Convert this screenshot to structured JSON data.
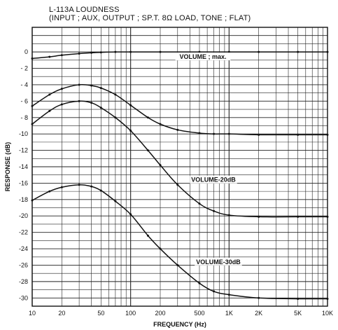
{
  "chart_data": {
    "type": "line",
    "title": "L-113A  LOUDNESS",
    "subtitle": "(INPUT ; AUX, OUTPUT ; SP.T. 8Ω LOAD, TONE ; FLAT)",
    "xlabel": "FREQUENCY (Hz)",
    "ylabel": "RESPONSE (dB)",
    "xscale": "log",
    "xlim": [
      10,
      10000
    ],
    "ylim": [
      -31,
      3
    ],
    "x_ticks": [
      10,
      20,
      50,
      100,
      200,
      500,
      1000,
      2000,
      5000,
      10000
    ],
    "x_tick_labels": [
      "10",
      "20",
      "50",
      "100",
      "200",
      "500",
      "1K",
      "2K",
      "5K",
      "10K"
    ],
    "y_ticks": [
      0,
      -2,
      -4,
      -6,
      -8,
      -10,
      -12,
      -14,
      -16,
      -18,
      -20,
      -22,
      -24,
      -26,
      -28,
      -30
    ],
    "y_tick_labels": [
      "0",
      "- 2",
      "- 4",
      "- 6",
      "- 8",
      "-10",
      "-12",
      "-14",
      "-16",
      "-18",
      "-20",
      "-22",
      "-24",
      "-26",
      "-28",
      "-30"
    ],
    "grid": true,
    "series": [
      {
        "name": "VOLUME ; max.",
        "x": [
          10,
          15,
          20,
          30,
          40,
          50,
          70,
          100,
          200,
          500,
          1000,
          2000,
          5000,
          10000
        ],
        "values": [
          -0.8,
          -0.6,
          -0.4,
          -0.2,
          -0.1,
          -0.05,
          0,
          0,
          0,
          0,
          0,
          0,
          0,
          0
        ]
      },
      {
        "name": "",
        "x": [
          10,
          15,
          20,
          30,
          40,
          50,
          70,
          100,
          150,
          200,
          300,
          500,
          700,
          1000,
          2000,
          5000,
          10000
        ],
        "values": [
          -6.6,
          -5.2,
          -4.5,
          -4.0,
          -4.1,
          -4.4,
          -5.2,
          -6.5,
          -8.0,
          -8.8,
          -9.5,
          -9.9,
          -10.0,
          -10.0,
          -10.1,
          -10.1,
          -10.1
        ]
      },
      {
        "name": "VOLUME-20dB",
        "x": [
          10,
          15,
          20,
          30,
          40,
          50,
          70,
          100,
          150,
          200,
          300,
          500,
          700,
          1000,
          2000,
          5000,
          10000
        ],
        "values": [
          -8.8,
          -7.2,
          -6.4,
          -6.0,
          -6.2,
          -6.8,
          -8.0,
          -9.6,
          -12.0,
          -13.8,
          -16.2,
          -18.5,
          -19.4,
          -19.9,
          -20.1,
          -20.1,
          -20.1
        ]
      },
      {
        "name": "VOLUME-30dB",
        "x": [
          10,
          15,
          20,
          30,
          40,
          50,
          70,
          100,
          150,
          200,
          300,
          500,
          700,
          1000,
          2000,
          5000,
          10000
        ],
        "values": [
          -18.1,
          -17.0,
          -16.5,
          -16.2,
          -16.4,
          -16.9,
          -18.2,
          -19.8,
          -22.4,
          -24.0,
          -26.0,
          -28.2,
          -29.2,
          -29.6,
          -30.0,
          -30.1,
          -30.1
        ]
      }
    ]
  }
}
